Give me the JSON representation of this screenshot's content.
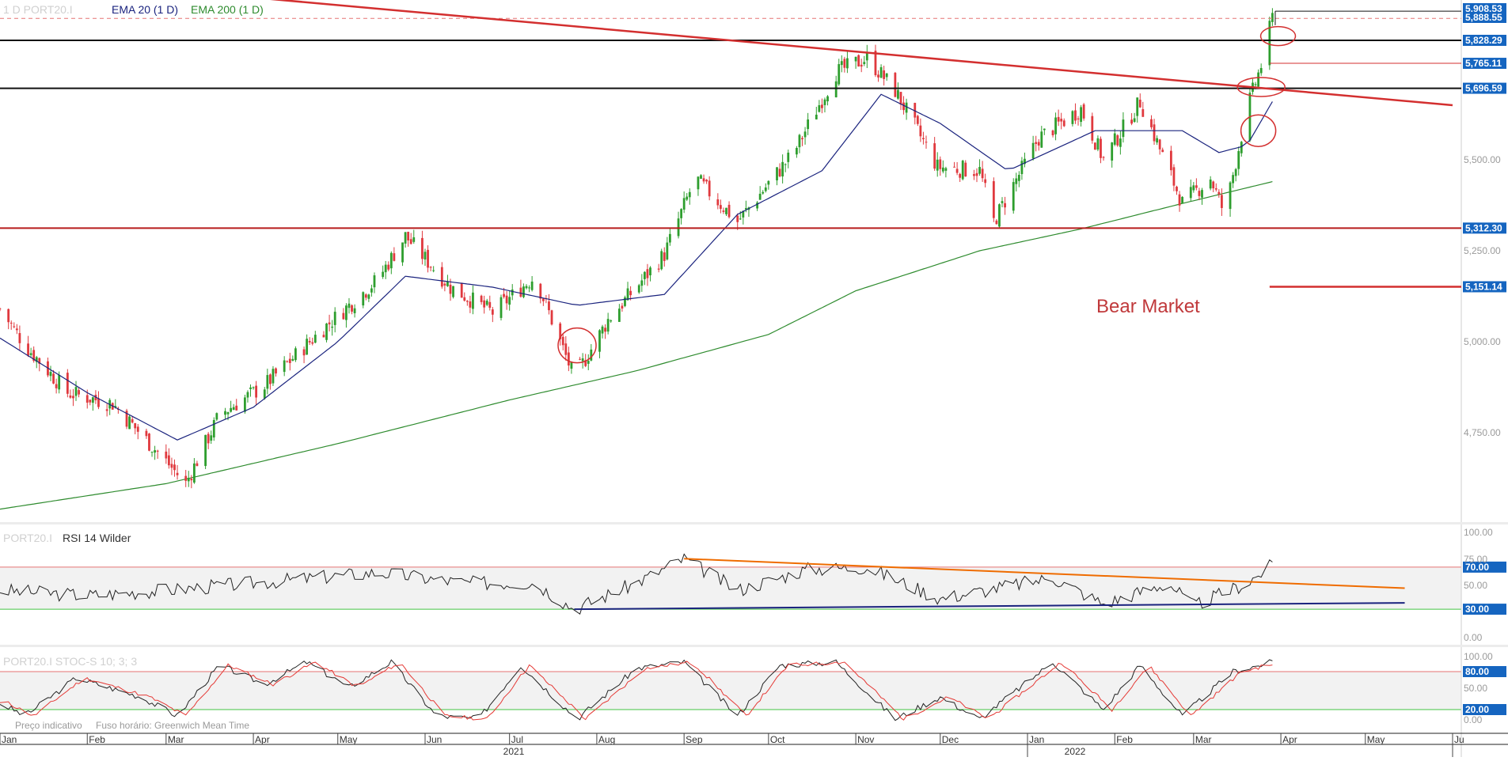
{
  "header": {
    "symbol_interval": "1 D   PORT20.I",
    "ema20_label": "EMA 20  (1 D)",
    "ema200_label": "EMA 200  (1 D)"
  },
  "colors": {
    "up_candle": "#2e9e2e",
    "down_candle": "#e0393e",
    "ema20": "#1a237e",
    "ema200": "#2e8b2e",
    "resistance": "#d32f2f",
    "support_black": "#111111",
    "rsi_trend_orange": "#ef6c00",
    "rsi_trend_navy": "#1a237e",
    "label_bg": "#1565c0",
    "overbought": "#e57373",
    "oversold": "#43c443"
  },
  "price_axis": {
    "ticks": [
      "5,500.00",
      "5,250.00",
      "5,000.00",
      "4,750.00"
    ],
    "level_labels": [
      "5,908.53",
      "5,888.55",
      "5,828.29",
      "5,765.11",
      "5,696.59",
      "5,312.30",
      "5,151.14"
    ]
  },
  "annotation": {
    "bear_market": "Bear Market"
  },
  "rsi_panel": {
    "symbol": "PORT20.I",
    "title": "RSI 14 Wilder",
    "ticks": [
      "100.00",
      "75.00",
      "50.00",
      "0.00"
    ],
    "level_labels": [
      "70.00",
      "30.00"
    ]
  },
  "stoch_panel": {
    "title": "PORT20.I  STOC-S 10; 3; 3",
    "ticks": [
      "100.00",
      "50.00",
      "0.00"
    ],
    "level_labels": [
      "80.00",
      "20.00"
    ],
    "footer_price": "Preço indicativo",
    "footer_tz": "Fuso horário: Greenwich Mean Time"
  },
  "time_axis": {
    "months": [
      "Jan",
      "Feb",
      "Mar",
      "Apr",
      "May",
      "Jun",
      "Jul",
      "Aug",
      "Sep",
      "Oct",
      "Nov",
      "Dec",
      "Jan",
      "Feb",
      "Mar",
      "Apr",
      "May",
      "Ju"
    ],
    "years": [
      "2021",
      "2022"
    ]
  },
  "chart_data": {
    "type": "candlestick",
    "price_ylim": [
      4540,
      5940
    ],
    "x_range": [
      "2021-01-01",
      "2022-06-01"
    ],
    "price_anchors": [
      {
        "date": "2021-01-01",
        "close": 5090
      },
      {
        "date": "2021-01-10",
        "close": 4990
      },
      {
        "date": "2021-01-25",
        "close": 4860
      },
      {
        "date": "2021-02-10",
        "close": 4830
      },
      {
        "date": "2021-02-28",
        "close": 4680
      },
      {
        "date": "2021-03-08",
        "close": 4610
      },
      {
        "date": "2021-03-20",
        "close": 4800
      },
      {
        "date": "2021-04-05",
        "close": 4880
      },
      {
        "date": "2021-04-25",
        "close": 5030
      },
      {
        "date": "2021-05-15",
        "close": 5170
      },
      {
        "date": "2021-05-25",
        "close": 5290
      },
      {
        "date": "2021-06-10",
        "close": 5150
      },
      {
        "date": "2021-06-25",
        "close": 5080
      },
      {
        "date": "2021-07-10",
        "close": 5180
      },
      {
        "date": "2021-07-24",
        "close": 4900
      },
      {
        "date": "2021-08-05",
        "close": 5060
      },
      {
        "date": "2021-08-25",
        "close": 5240
      },
      {
        "date": "2021-09-05",
        "close": 5450
      },
      {
        "date": "2021-09-20",
        "close": 5330
      },
      {
        "date": "2021-10-10",
        "close": 5520
      },
      {
        "date": "2021-10-25",
        "close": 5740
      },
      {
        "date": "2021-11-05",
        "close": 5780
      },
      {
        "date": "2021-11-15",
        "close": 5690
      },
      {
        "date": "2021-11-30",
        "close": 5480
      },
      {
        "date": "2021-12-15",
        "close": 5470
      },
      {
        "date": "2021-12-20",
        "close": 5330
      },
      {
        "date": "2022-01-05",
        "close": 5560
      },
      {
        "date": "2022-01-20",
        "close": 5640
      },
      {
        "date": "2022-01-28",
        "close": 5500
      },
      {
        "date": "2022-02-10",
        "close": 5660
      },
      {
        "date": "2022-02-25",
        "close": 5380
      },
      {
        "date": "2022-03-07",
        "close": 5450
      },
      {
        "date": "2022-03-12",
        "close": 5350
      },
      {
        "date": "2022-03-20",
        "close": 5640
      },
      {
        "date": "2022-03-25",
        "close": 5760
      },
      {
        "date": "2022-03-29",
        "close": 5890
      }
    ],
    "ema20_anchors": [
      {
        "date": "2021-01-01",
        "value": 5010
      },
      {
        "date": "2021-02-01",
        "value": 4860
      },
      {
        "date": "2021-03-05",
        "value": 4730
      },
      {
        "date": "2021-04-01",
        "value": 4820
      },
      {
        "date": "2021-05-01",
        "value": 5000
      },
      {
        "date": "2021-05-25",
        "value": 5180
      },
      {
        "date": "2021-06-25",
        "value": 5150
      },
      {
        "date": "2021-07-25",
        "value": 5100
      },
      {
        "date": "2021-08-25",
        "value": 5130
      },
      {
        "date": "2021-09-20",
        "value": 5350
      },
      {
        "date": "2021-10-20",
        "value": 5470
      },
      {
        "date": "2021-11-10",
        "value": 5680
      },
      {
        "date": "2021-12-01",
        "value": 5600
      },
      {
        "date": "2021-12-25",
        "value": 5470
      },
      {
        "date": "2022-01-25",
        "value": 5580
      },
      {
        "date": "2022-02-25",
        "value": 5580
      },
      {
        "date": "2022-03-10",
        "value": 5520
      },
      {
        "date": "2022-03-20",
        "value": 5540
      },
      {
        "date": "2022-03-29",
        "value": 5660
      }
    ],
    "ema200_anchors": [
      {
        "date": "2021-01-01",
        "value": 4540
      },
      {
        "date": "2021-03-01",
        "value": 4610
      },
      {
        "date": "2021-05-01",
        "value": 4720
      },
      {
        "date": "2021-07-01",
        "value": 4840
      },
      {
        "date": "2021-08-15",
        "value": 4920
      },
      {
        "date": "2021-10-01",
        "value": 5020
      },
      {
        "date": "2021-11-01",
        "value": 5140
      },
      {
        "date": "2021-12-15",
        "value": 5250
      },
      {
        "date": "2022-01-20",
        "value": 5310
      },
      {
        "date": "2022-02-25",
        "value": 5380
      },
      {
        "date": "2022-03-29",
        "value": 5440
      }
    ],
    "trendline": {
      "start": {
        "date": "2020-12-01",
        "value": 6030
      },
      "end": {
        "date": "2022-06-01",
        "value": 5650
      }
    },
    "horizontal_levels": [
      {
        "value": 5908.53,
        "style": "black"
      },
      {
        "value": 5888.55,
        "style": "red-dashed"
      },
      {
        "value": 5828.29,
        "style": "black"
      },
      {
        "value": 5765.11,
        "style": "red"
      },
      {
        "value": 5696.59,
        "style": "black"
      },
      {
        "value": 5312.3,
        "style": "darkred"
      },
      {
        "value": 5151.14,
        "style": "red"
      }
    ],
    "highlight_circles": [
      {
        "date": "2021-07-25",
        "value": 4990
      },
      {
        "date": "2022-03-25",
        "value": 5700
      },
      {
        "date": "2022-03-24",
        "value": 5580
      },
      {
        "date": "2022-03-31",
        "value": 5840
      }
    ],
    "rsi_ylim": [
      0,
      100
    ],
    "rsi_levels": [
      70,
      30
    ],
    "rsi_anchors": [
      {
        "date": "2021-01-01",
        "value": 48
      },
      {
        "date": "2021-02-01",
        "value": 43
      },
      {
        "date": "2021-03-01",
        "value": 48
      },
      {
        "date": "2021-04-15",
        "value": 58
      },
      {
        "date": "2021-05-15",
        "value": 65
      },
      {
        "date": "2021-06-15",
        "value": 55
      },
      {
        "date": "2021-07-10",
        "value": 55
      },
      {
        "date": "2021-07-24",
        "value": 30
      },
      {
        "date": "2021-08-15",
        "value": 55
      },
      {
        "date": "2021-09-01",
        "value": 78
      },
      {
        "date": "2021-09-20",
        "value": 48
      },
      {
        "date": "2021-10-15",
        "value": 68
      },
      {
        "date": "2021-11-05",
        "value": 70
      },
      {
        "date": "2021-12-01",
        "value": 40
      },
      {
        "date": "2022-01-10",
        "value": 60
      },
      {
        "date": "2022-01-28",
        "value": 35
      },
      {
        "date": "2022-02-20",
        "value": 55
      },
      {
        "date": "2022-03-01",
        "value": 33
      },
      {
        "date": "2022-03-20",
        "value": 55
      },
      {
        "date": "2022-03-29",
        "value": 72
      }
    ],
    "rsi_trendlines": [
      {
        "color": "orange",
        "start": {
          "date": "2021-09-01",
          "value": 78
        },
        "end": {
          "date": "2022-05-15",
          "value": 50
        }
      },
      {
        "color": "navy",
        "start": {
          "date": "2021-07-24",
          "value": 30
        },
        "end": {
          "date": "2022-05-15",
          "value": 36
        }
      }
    ],
    "stoch_ylim": [
      0,
      100
    ],
    "stoch_levels": [
      80,
      20
    ],
    "stoch_anchors": [
      {
        "date": "2021-01-01",
        "value": 30
      },
      {
        "date": "2021-01-10",
        "value": 10
      },
      {
        "date": "2021-01-28",
        "value": 70
      },
      {
        "date": "2021-02-20",
        "value": 40
      },
      {
        "date": "2021-03-05",
        "value": 10
      },
      {
        "date": "2021-03-20",
        "value": 90
      },
      {
        "date": "2021-04-05",
        "value": 60
      },
      {
        "date": "2021-04-20",
        "value": 95
      },
      {
        "date": "2021-05-05",
        "value": 55
      },
      {
        "date": "2021-05-20",
        "value": 95
      },
      {
        "date": "2021-06-05",
        "value": 10
      },
      {
        "date": "2021-06-20",
        "value": 5
      },
      {
        "date": "2021-07-05",
        "value": 90
      },
      {
        "date": "2021-07-25",
        "value": 5
      },
      {
        "date": "2021-08-15",
        "value": 85
      },
      {
        "date": "2021-09-01",
        "value": 95
      },
      {
        "date": "2021-09-20",
        "value": 10
      },
      {
        "date": "2021-10-05",
        "value": 90
      },
      {
        "date": "2021-10-25",
        "value": 95
      },
      {
        "date": "2021-11-15",
        "value": 5
      },
      {
        "date": "2021-12-01",
        "value": 40
      },
      {
        "date": "2021-12-15",
        "value": 5
      },
      {
        "date": "2022-01-10",
        "value": 95
      },
      {
        "date": "2022-01-28",
        "value": 20
      },
      {
        "date": "2022-02-10",
        "value": 90
      },
      {
        "date": "2022-02-25",
        "value": 10
      },
      {
        "date": "2022-03-15",
        "value": 80
      },
      {
        "date": "2022-03-29",
        "value": 95
      }
    ]
  }
}
